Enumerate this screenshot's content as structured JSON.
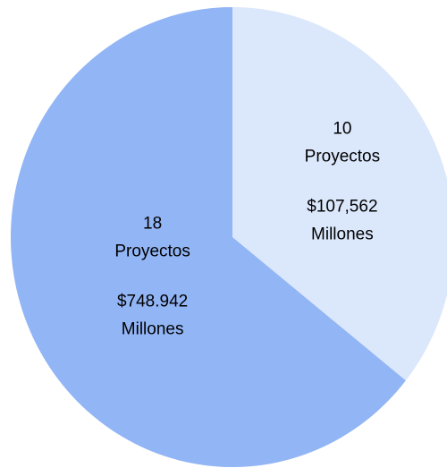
{
  "chart_data": {
    "type": "pie",
    "values": [
      10,
      18
    ],
    "colors": [
      "#dbe7fb",
      "#92b5f5"
    ],
    "slice_labels": [
      {
        "count_unit": "Proyectos",
        "amount": "$107,562",
        "amount_unit": "Millones"
      },
      {
        "count_unit": "Proyectos",
        "amount": "$748.942",
        "amount_unit": "Millones"
      }
    ]
  }
}
